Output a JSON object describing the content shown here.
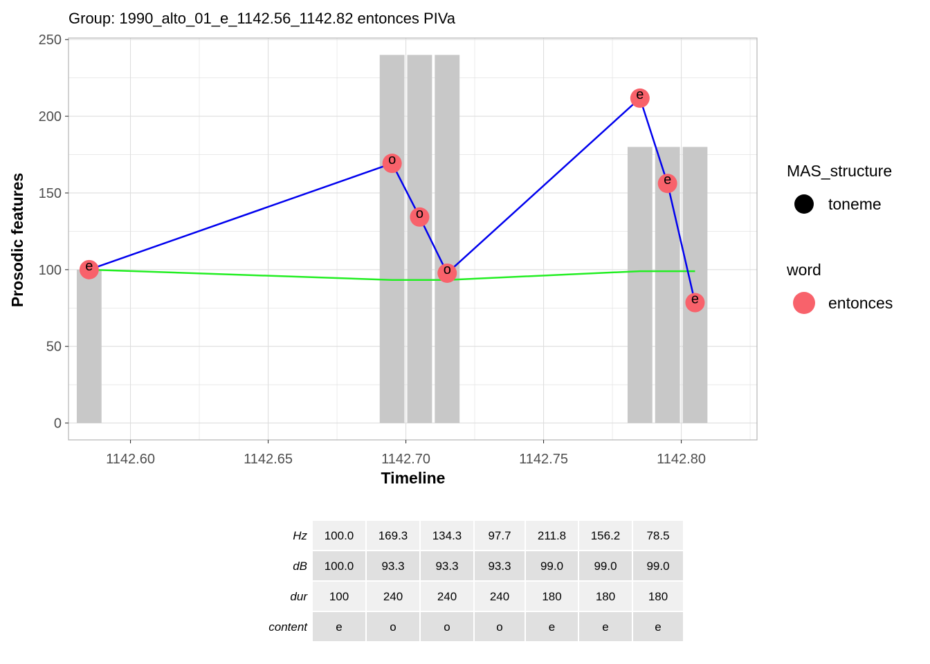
{
  "chart_data": {
    "type": "bar+line+scatter",
    "title": "Group: 1990_alto_01_e_1142.56_1142.82 entonces PIVa",
    "xlabel": "Timeline",
    "ylabel": "Prosodic features",
    "xlim": [
      1142.5775,
      1142.8275
    ],
    "ylim": [
      -11,
      251
    ],
    "x_ticks": [
      1142.6,
      1142.65,
      1142.7,
      1142.75,
      1142.8
    ],
    "x_tick_labels": [
      "1142.60",
      "1142.65",
      "1142.70",
      "1142.75",
      "1142.80"
    ],
    "y_ticks": [
      0,
      50,
      100,
      150,
      200,
      250
    ],
    "y_tick_labels": [
      "0",
      "50",
      "100",
      "150",
      "200",
      "250"
    ],
    "grid": true,
    "x": [
      1142.585,
      1142.695,
      1142.705,
      1142.715,
      1142.785,
      1142.795,
      1142.805
    ],
    "bars": {
      "name": "dur",
      "color": "#c8c8c8",
      "values": [
        100,
        240,
        240,
        240,
        180,
        180,
        180
      ]
    },
    "series": [
      {
        "name": "Hz",
        "color": "#0000ee",
        "values": [
          100.0,
          169.3,
          134.3,
          97.7,
          211.8,
          156.2,
          78.5
        ]
      },
      {
        "name": "dB",
        "color": "#22ee22",
        "values": [
          100.0,
          93.3,
          93.3,
          93.3,
          99.0,
          99.0,
          99.0
        ]
      }
    ],
    "hz_segments": [
      [
        0,
        1,
        2,
        3
      ],
      [
        3,
        4,
        5,
        6
      ]
    ],
    "point_color": "#f8626b",
    "point_labels": [
      "e",
      "o",
      "o",
      "o",
      "e",
      "e",
      "e"
    ],
    "legend": {
      "placement": "right",
      "groups": [
        {
          "title": "MAS_structure",
          "label": "toneme",
          "swatch_color": "#000000"
        },
        {
          "title": "word",
          "label": "entonces",
          "swatch_color": "#f8626b"
        }
      ]
    },
    "table": {
      "rows": [
        {
          "label": "Hz",
          "cells": [
            "100.0",
            "169.3",
            "134.3",
            "97.7",
            "211.8",
            "156.2",
            "78.5"
          ]
        },
        {
          "label": "dB",
          "cells": [
            "100.0",
            "93.3",
            "93.3",
            "93.3",
            "99.0",
            "99.0",
            "99.0"
          ]
        },
        {
          "label": "dur",
          "cells": [
            "100",
            "240",
            "240",
            "240",
            "180",
            "180",
            "180"
          ]
        },
        {
          "label": "content",
          "cells": [
            "e",
            "o",
            "o",
            "o",
            "e",
            "e",
            "e"
          ]
        }
      ]
    }
  }
}
